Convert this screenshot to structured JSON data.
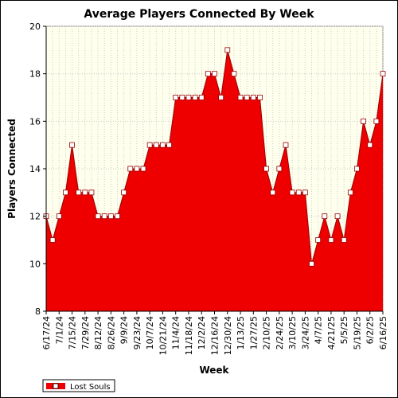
{
  "colors": {
    "plot_background": "#ffffee",
    "area_fill": "#ee0000",
    "line": "#990000",
    "marker_fill": "#ffffff",
    "grid": "#cccccc"
  },
  "chart_data": {
    "type": "area",
    "title": "Average Players Connected By Week",
    "xlabel": "Week",
    "ylabel": "Players Connected",
    "ylim": [
      8,
      20
    ],
    "yticks": [
      8,
      10,
      12,
      14,
      16,
      18,
      20
    ],
    "grid": true,
    "legend_position": "bottom-left",
    "x": [
      "6/17/24",
      "6/24/24",
      "7/1/24",
      "7/8/24",
      "7/15/24",
      "7/22/24",
      "7/29/24",
      "8/5/24",
      "8/12/24",
      "8/19/24",
      "8/26/24",
      "9/2/24",
      "9/9/24",
      "9/16/24",
      "9/23/24",
      "9/30/24",
      "10/7/24",
      "10/14/24",
      "10/21/24",
      "10/28/24",
      "11/4/24",
      "11/11/24",
      "11/18/24",
      "11/25/24",
      "12/2/24",
      "12/9/24",
      "12/16/24",
      "12/23/24",
      "12/30/24",
      "1/6/25",
      "1/13/25",
      "1/20/25",
      "1/27/25",
      "2/3/25",
      "2/10/25",
      "2/17/25",
      "2/24/25",
      "3/3/25",
      "3/10/25",
      "3/17/25",
      "3/24/25",
      "3/31/25",
      "4/7/25",
      "4/14/25",
      "4/21/25",
      "4/28/25",
      "5/5/25",
      "5/12/25",
      "5/19/25",
      "5/26/25",
      "6/2/25",
      "6/9/25",
      "6/16/25"
    ],
    "x_tick_labels": [
      "6/17/24",
      "7/1/24",
      "7/15/24",
      "7/29/24",
      "8/12/24",
      "8/26/24",
      "9/9/24",
      "9/23/24",
      "10/7/24",
      "10/21/24",
      "11/4/24",
      "11/18/24",
      "12/2/24",
      "12/16/24",
      "12/30/24",
      "1/13/25",
      "1/27/25",
      "2/10/25",
      "2/24/25",
      "3/10/25",
      "3/24/25",
      "4/7/25",
      "4/21/25",
      "5/5/25",
      "5/19/25",
      "6/2/25",
      "6/16/25"
    ],
    "series": [
      {
        "name": "Lost Souls",
        "values": [
          12,
          11,
          12,
          13,
          15,
          13,
          13,
          13,
          12,
          12,
          12,
          12,
          13,
          14,
          14,
          14,
          15,
          15,
          15,
          15,
          17,
          17,
          17,
          17,
          17,
          18,
          18,
          17,
          19,
          18,
          17,
          17,
          17,
          17,
          14,
          13,
          14,
          15,
          13,
          13,
          13,
          10,
          11,
          12,
          11,
          12,
          11,
          13,
          14,
          16,
          15,
          16,
          18
        ]
      }
    ]
  }
}
